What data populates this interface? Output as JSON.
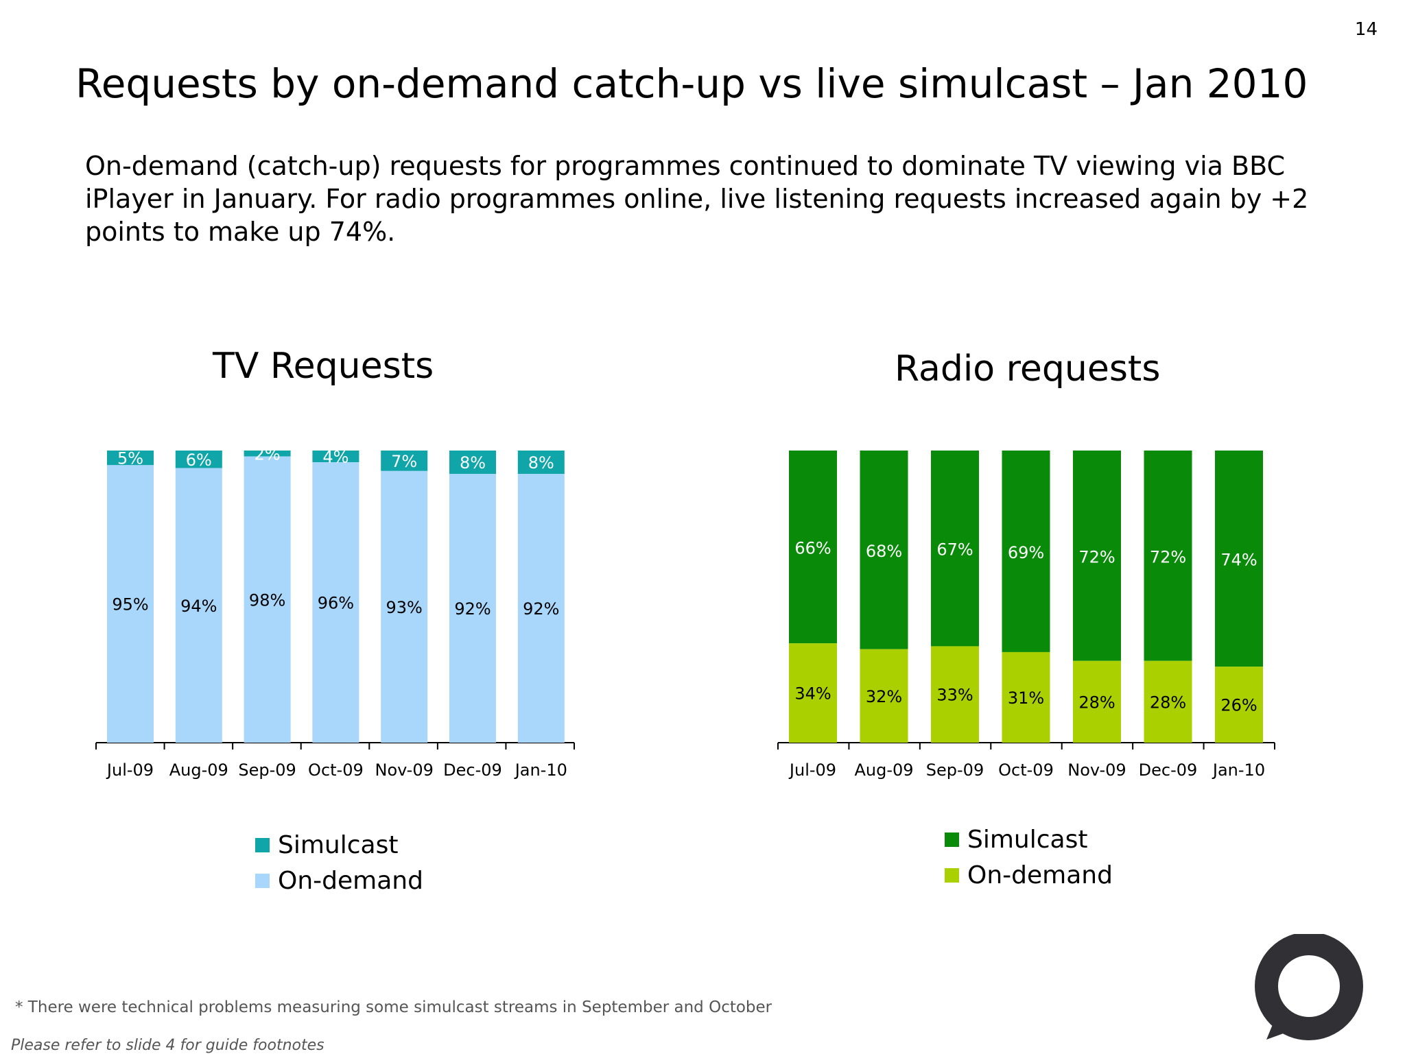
{
  "page_number": "14",
  "title": "Requests by on-demand catch-up vs live simulcast – Jan 2010",
  "summary": "On-demand (catch-up) requests for programmes continued to dominate TV viewing via BBC iPlayer in January.  For radio programmes online, live listening requests increased again by +2 points to make up 74%.",
  "colors": {
    "tv_simulcast": "#10a5a8",
    "tv_on_demand": "#a9d7fb",
    "radio_simulcast": "#098b09",
    "radio_on_demand": "#aad000",
    "logo": "#303035"
  },
  "icons": {
    "logo": "speech-bubble-logo-icon"
  },
  "legend": {
    "simulcast": "Simulcast",
    "on_demand": "On-demand"
  },
  "chart_data": [
    {
      "type": "bar",
      "stacked": true,
      "title": "TV Requests",
      "categories": [
        "Jul-09",
        "Aug-09",
        "Sep-09",
        "Oct-09",
        "Nov-09",
        "Dec-09",
        "Jan-10"
      ],
      "series": [
        {
          "name": "On-demand",
          "values": [
            95,
            94,
            98,
            96,
            93,
            92,
            92
          ],
          "labels": [
            "95%",
            "94%",
            "98%",
            "96%",
            "93%",
            "92%",
            "92%"
          ]
        },
        {
          "name": "Simulcast",
          "values": [
            5,
            6,
            2,
            4,
            7,
            8,
            8
          ],
          "labels": [
            "5%",
            "6%",
            "2%",
            "4%",
            "7%",
            "8%",
            "8%"
          ]
        }
      ],
      "legend": [
        "Simulcast",
        "On-demand"
      ]
    },
    {
      "type": "bar",
      "stacked": true,
      "title": "Radio requests",
      "categories": [
        "Jul-09",
        "Aug-09",
        "Sep-09",
        "Oct-09",
        "Nov-09",
        "Dec-09",
        "Jan-10"
      ],
      "series": [
        {
          "name": "On-demand",
          "values": [
            34,
            32,
            33,
            31,
            28,
            28,
            26
          ],
          "labels": [
            "34%",
            "32%",
            "33%",
            "31%",
            "28%",
            "28%",
            "26%"
          ]
        },
        {
          "name": "Simulcast",
          "values": [
            66,
            68,
            67,
            69,
            72,
            72,
            74
          ],
          "labels": [
            "66%",
            "68%",
            "67%",
            "69%",
            "72%",
            "72%",
            "74%"
          ]
        }
      ],
      "legend": [
        "Simulcast",
        "On-demand"
      ]
    }
  ],
  "footnote": "* There were technical problems measuring some simulcast streams in September and October",
  "guide_note": "Please refer to slide 4 for guide footnotes"
}
